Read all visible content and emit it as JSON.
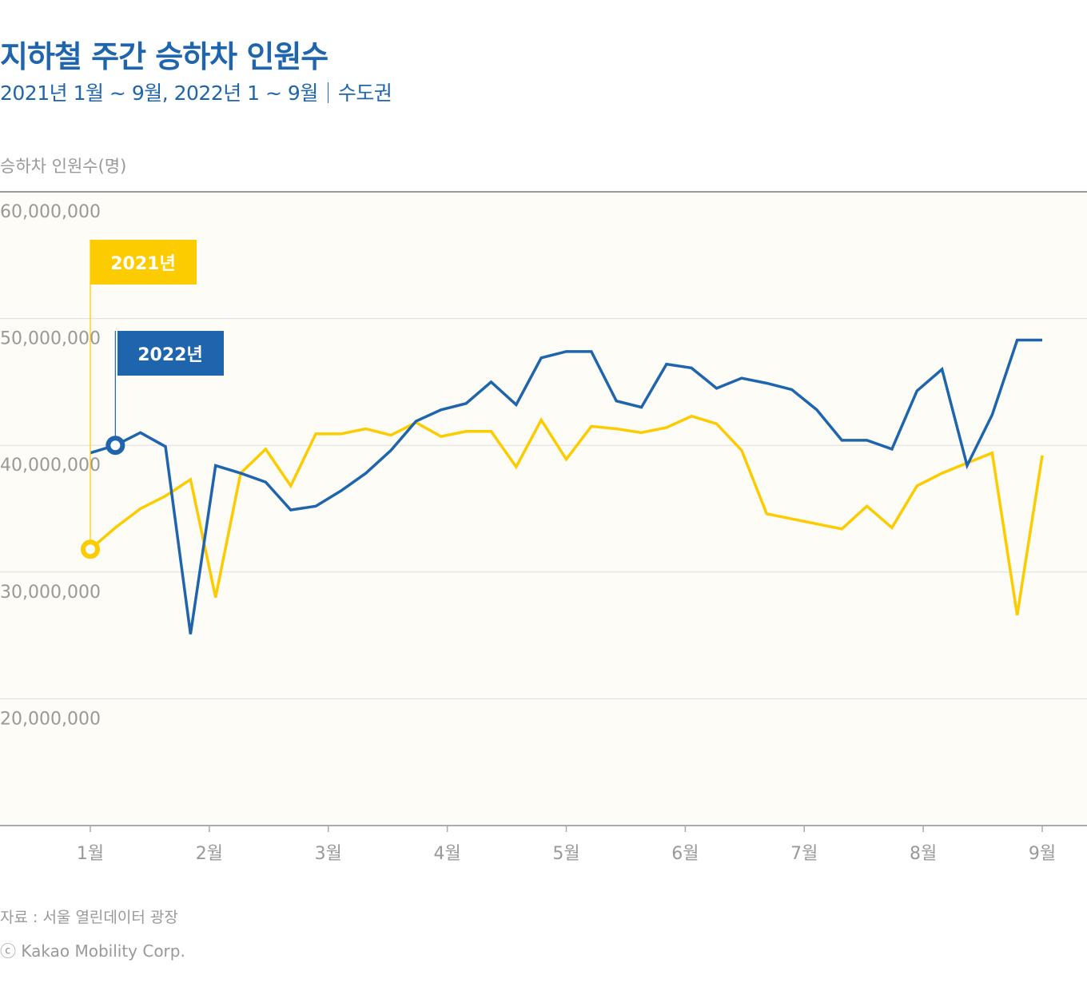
{
  "title": "지하철 주간 승하차 인원수",
  "subtitle": {
    "period": "2021년 1월 ~ 9월, 2022년 1 ~ 9월",
    "region": "수도권"
  },
  "source": "자료 : 서울 열린데이터 광장",
  "copyright": "ⓒ Kakao Mobility Corp.",
  "chart_data": {
    "type": "line",
    "title": "지하철 주간 승하차 인원수",
    "ylabel": "승하차 인원수(명)",
    "xlabel": "",
    "ylim": [
      10000000,
      60000000
    ],
    "yticks": [
      20000000,
      30000000,
      40000000,
      50000000,
      60000000
    ],
    "ytick_labels": [
      "20,000,000",
      "30,000,000",
      "40,000,000",
      "50,000,000",
      "60,000,000"
    ],
    "xtick_labels": [
      "1월",
      "2월",
      "3월",
      "4월",
      "5월",
      "6월",
      "7월",
      "8월",
      "9월"
    ],
    "grid": true,
    "series": [
      {
        "name": "2021년",
        "color": "#fccc00",
        "values": [
          31800000,
          33500000,
          35000000,
          36000000,
          37300000,
          28000000,
          37800000,
          39700000,
          36800000,
          40900000,
          40900000,
          41300000,
          40800000,
          41800000,
          40700000,
          41100000,
          41100000,
          38300000,
          42000000,
          38900000,
          41500000,
          41300000,
          41000000,
          41400000,
          42300000,
          41700000,
          39600000,
          34600000,
          34200000,
          33800000,
          33400000,
          35200000,
          33500000,
          36800000,
          37800000,
          38600000,
          39400000,
          26600000,
          39200000
        ]
      },
      {
        "name": "2022년",
        "color": "#1f65ad",
        "values": [
          39400000,
          40000000,
          41000000,
          39900000,
          25100000,
          38400000,
          37800000,
          37100000,
          34900000,
          35200000,
          36400000,
          37800000,
          39600000,
          41900000,
          42800000,
          43300000,
          45000000,
          43200000,
          46900000,
          47400000,
          47400000,
          43500000,
          43000000,
          46400000,
          46100000,
          44500000,
          45300000,
          44900000,
          44400000,
          42800000,
          40400000,
          40400000,
          39700000,
          44300000,
          46000000,
          38400000,
          42400000,
          48300000,
          48300000
        ]
      }
    ]
  }
}
